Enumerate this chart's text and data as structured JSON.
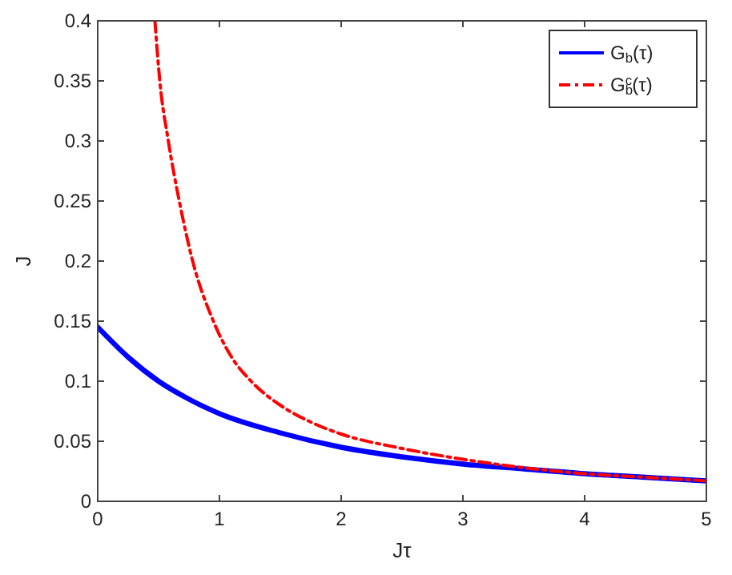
{
  "chart_data": {
    "type": "line",
    "xlabel": "Jτ",
    "ylabel": "J",
    "xlim": [
      0,
      5
    ],
    "ylim": [
      0,
      0.4
    ],
    "xticks": [
      0,
      1,
      2,
      3,
      4,
      5
    ],
    "yticks": [
      0,
      0.05,
      0.1,
      0.15,
      0.2,
      0.25,
      0.3,
      0.35,
      0.4
    ],
    "grid": false,
    "legend": "top right",
    "marker": "none",
    "series": [
      {
        "name": "G$_{b}$(τ)",
        "color": "#0000ff",
        "line_style": "solid",
        "x": [
          0,
          0.25,
          0.5,
          0.75,
          1,
          1.5,
          2,
          2.5,
          3,
          3.5,
          4,
          4.5,
          5
        ],
        "values": [
          0.145,
          0.12,
          0.1,
          0.085,
          0.073,
          0.057,
          0.045,
          0.037,
          0.031,
          0.027,
          0.023,
          0.02,
          0.017
        ]
      },
      {
        "name": "G$_{b}$$^{c}$(τ)",
        "color": "#ff0000",
        "line_style": "dashed",
        "x": [
          0.47,
          0.51,
          0.58,
          0.67,
          0.78,
          0.95,
          1.1,
          1.26,
          1.5,
          1.75,
          2,
          2.5,
          3,
          3.5,
          4,
          4.5,
          5
        ],
        "values": [
          0.4,
          0.35,
          0.3,
          0.25,
          0.2,
          0.15,
          0.12,
          0.1,
          0.08,
          0.066,
          0.056,
          0.044,
          0.035,
          0.028,
          0.023,
          0.02,
          0.017
        ]
      }
    ]
  }
}
